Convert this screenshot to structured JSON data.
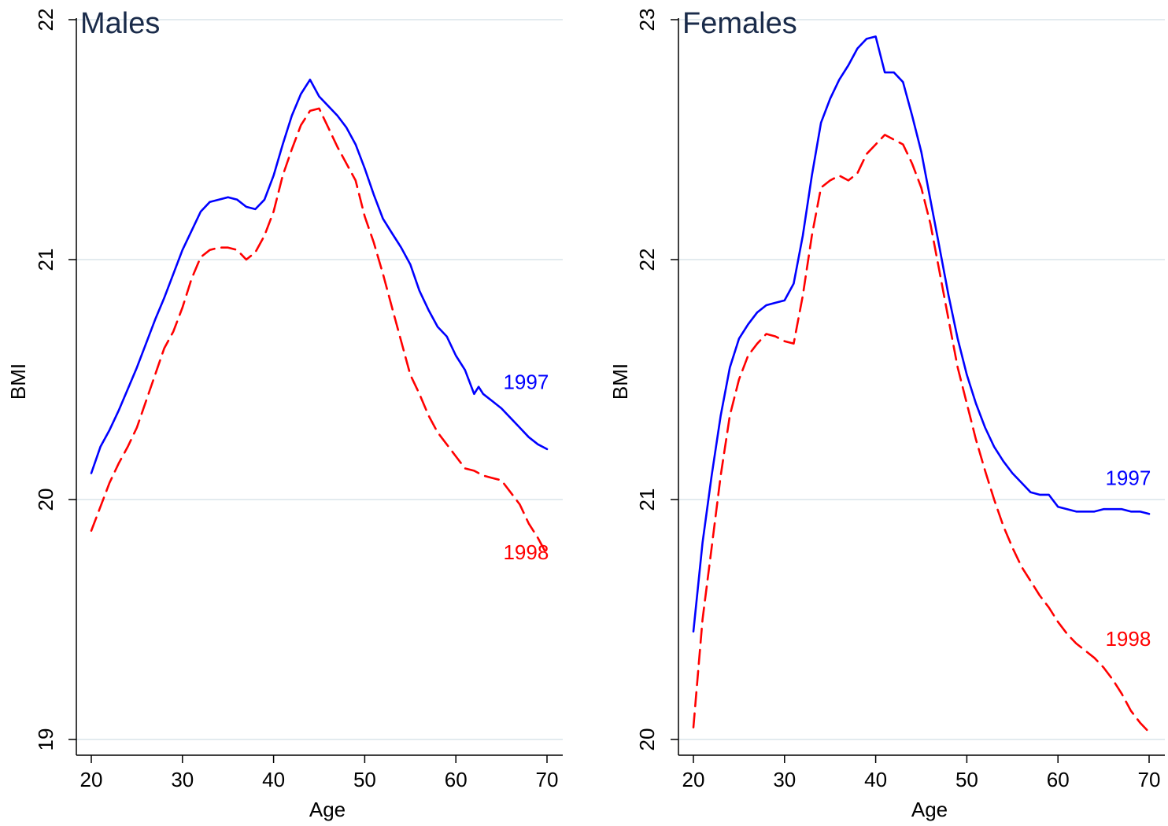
{
  "chart_data": [
    {
      "type": "line",
      "title": "Males",
      "xlabel": "Age",
      "ylabel": "BMI",
      "xlim": [
        20,
        70
      ],
      "ylim": [
        19,
        22
      ],
      "xticks": [
        20,
        30,
        40,
        50,
        60,
        70
      ],
      "yticks": [
        19,
        20,
        21,
        22
      ],
      "grid": true,
      "series": [
        {
          "name": "1997",
          "color": "#0000ff",
          "style": "solid",
          "x": [
            20,
            21,
            22,
            23,
            24,
            25,
            26,
            27,
            28,
            29,
            30,
            31,
            32,
            33,
            34,
            35,
            36,
            37,
            38,
            39,
            40,
            41,
            42,
            43,
            44,
            45,
            46,
            47,
            48,
            49,
            50,
            51,
            52,
            53,
            54,
            55,
            56,
            57,
            58,
            59,
            60,
            61,
            62,
            62.5,
            63,
            64,
            65,
            66,
            67,
            68,
            69,
            70
          ],
          "y": [
            20.11,
            20.22,
            20.29,
            20.37,
            20.46,
            20.55,
            20.65,
            20.75,
            20.84,
            20.94,
            21.04,
            21.12,
            21.2,
            21.24,
            21.25,
            21.26,
            21.25,
            21.22,
            21.21,
            21.25,
            21.35,
            21.48,
            21.6,
            21.69,
            21.75,
            21.68,
            21.64,
            21.6,
            21.55,
            21.48,
            21.38,
            21.27,
            21.17,
            21.11,
            21.05,
            20.98,
            20.87,
            20.79,
            20.72,
            20.68,
            20.6,
            20.54,
            20.44,
            20.47,
            20.44,
            20.41,
            20.38,
            20.34,
            20.3,
            20.26,
            20.23,
            20.21
          ]
        },
        {
          "name": "1998",
          "color": "#ff0000",
          "style": "dashed",
          "x": [
            20,
            21,
            22,
            23,
            24,
            25,
            26,
            27,
            28,
            29,
            30,
            31,
            32,
            33,
            34,
            35,
            36,
            37,
            38,
            39,
            40,
            41,
            42,
            43,
            44,
            45,
            46,
            47,
            48,
            49,
            50,
            51,
            52,
            53,
            54,
            55,
            56,
            57,
            58,
            59,
            60,
            61,
            62,
            63,
            64,
            65,
            66,
            67,
            68,
            69,
            70
          ],
          "y": [
            19.87,
            19.97,
            20.07,
            20.15,
            20.22,
            20.3,
            20.41,
            20.52,
            20.63,
            20.7,
            20.8,
            20.92,
            21.01,
            21.04,
            21.05,
            21.05,
            21.04,
            21.0,
            21.03,
            21.1,
            21.2,
            21.35,
            21.46,
            21.56,
            21.62,
            21.63,
            21.55,
            21.47,
            21.4,
            21.33,
            21.18,
            21.07,
            20.94,
            20.8,
            20.66,
            20.52,
            20.44,
            20.35,
            20.28,
            20.23,
            20.18,
            20.13,
            20.12,
            20.1,
            20.09,
            20.08,
            20.03,
            19.98,
            19.9,
            19.84,
            19.77
          ]
        }
      ],
      "series_labels": [
        {
          "text": "1997",
          "color": "#0000ff",
          "x": 67.7,
          "y": 20.49
        },
        {
          "text": "1998",
          "color": "#ff0000",
          "x": 67.7,
          "y": 19.78
        }
      ]
    },
    {
      "type": "line",
      "title": "Females",
      "xlabel": "Age",
      "ylabel": "BMI",
      "xlim": [
        20,
        70
      ],
      "ylim": [
        20,
        23
      ],
      "xticks": [
        20,
        30,
        40,
        50,
        60,
        70
      ],
      "yticks": [
        20,
        21,
        22,
        23
      ],
      "grid": true,
      "series": [
        {
          "name": "1997",
          "color": "#0000ff",
          "style": "solid",
          "x": [
            20,
            21,
            22,
            23,
            24,
            25,
            26,
            27,
            28,
            29,
            30,
            31,
            32,
            33,
            34,
            35,
            36,
            37,
            38,
            39,
            40,
            41,
            42,
            43,
            44,
            45,
            46,
            47,
            48,
            49,
            50,
            51,
            52,
            53,
            54,
            55,
            56,
            57,
            58,
            59,
            60,
            61,
            62,
            63,
            64,
            65,
            66,
            67,
            68,
            69,
            70
          ],
          "y": [
            20.45,
            20.82,
            21.1,
            21.35,
            21.55,
            21.67,
            21.73,
            21.78,
            21.81,
            21.82,
            21.83,
            21.9,
            22.1,
            22.35,
            22.57,
            22.67,
            22.75,
            22.81,
            22.88,
            22.92,
            22.93,
            22.78,
            22.78,
            22.74,
            22.6,
            22.45,
            22.25,
            22.05,
            21.85,
            21.67,
            21.52,
            21.4,
            21.3,
            21.22,
            21.16,
            21.11,
            21.07,
            21.03,
            21.02,
            21.02,
            20.97,
            20.96,
            20.95,
            20.95,
            20.95,
            20.96,
            20.96,
            20.96,
            20.95,
            20.95,
            20.94
          ]
        },
        {
          "name": "1998",
          "color": "#ff0000",
          "style": "dashed",
          "x": [
            20,
            21,
            22,
            23,
            24,
            25,
            26,
            27,
            28,
            29,
            30,
            31,
            32,
            33,
            34,
            35,
            36,
            37,
            38,
            39,
            40,
            41,
            42,
            43,
            44,
            45,
            46,
            47,
            48,
            49,
            50,
            51,
            52,
            53,
            54,
            55,
            56,
            57,
            58,
            59,
            60,
            61,
            62,
            63,
            64,
            65,
            66,
            67,
            68,
            69,
            70
          ],
          "y": [
            20.05,
            20.5,
            20.8,
            21.1,
            21.35,
            21.5,
            21.6,
            21.65,
            21.69,
            21.68,
            21.66,
            21.65,
            21.85,
            22.1,
            22.3,
            22.33,
            22.35,
            22.33,
            22.36,
            22.44,
            22.48,
            22.52,
            22.5,
            22.48,
            22.4,
            22.3,
            22.15,
            21.95,
            21.75,
            21.55,
            21.4,
            21.25,
            21.12,
            21.0,
            20.89,
            20.8,
            20.72,
            20.66,
            20.6,
            20.55,
            20.49,
            20.44,
            20.4,
            20.37,
            20.34,
            20.3,
            20.25,
            20.19,
            20.12,
            20.07,
            20.03
          ]
        }
      ],
      "series_labels": [
        {
          "text": "1997",
          "color": "#0000ff",
          "x": 67.7,
          "y": 21.09
        },
        {
          "text": "1998",
          "color": "#ff0000",
          "x": 67.7,
          "y": 20.42
        }
      ]
    }
  ]
}
